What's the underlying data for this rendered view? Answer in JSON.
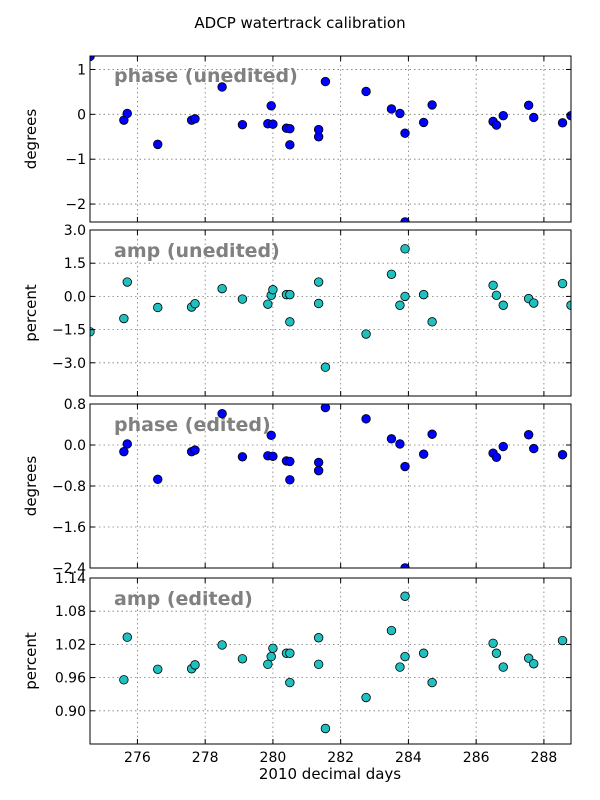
{
  "title": "ADCP watertrack calibration",
  "xlabel": "2010 decimal days",
  "colors": {
    "blue": "#0000ff",
    "cyan": "#20c0c0",
    "label_gray": "#808080"
  },
  "chart_data": [
    {
      "type": "scatter",
      "label": "phase (unedited)",
      "ylabel": "degrees",
      "xlim": [
        274.6,
        288.8
      ],
      "ylim": [
        -2.4,
        1.3
      ],
      "yticks": [
        "1",
        "0",
        "−1",
        "−2"
      ],
      "ytick_values": [
        1,
        0,
        -1,
        -2
      ],
      "xticks": [
        276,
        278,
        280,
        282,
        284,
        286,
        288
      ],
      "color": "#0000ff",
      "grid": true,
      "points": [
        [
          274.6,
          1.29
        ],
        [
          275.6,
          -0.13
        ],
        [
          275.7,
          0.02
        ],
        [
          276.6,
          -0.67
        ],
        [
          277.6,
          -0.13
        ],
        [
          277.7,
          -0.1
        ],
        [
          278.5,
          0.61
        ],
        [
          279.1,
          -0.23
        ],
        [
          279.85,
          -0.21
        ],
        [
          279.95,
          0.19
        ],
        [
          280.0,
          -0.22
        ],
        [
          280.4,
          -0.31
        ],
        [
          280.5,
          -0.32
        ],
        [
          280.5,
          -0.68
        ],
        [
          281.35,
          -0.5
        ],
        [
          281.35,
          -0.34
        ],
        [
          281.55,
          0.73
        ],
        [
          282.75,
          0.51
        ],
        [
          283.5,
          0.12
        ],
        [
          283.75,
          0.02
        ],
        [
          283.9,
          -0.42
        ],
        [
          283.9,
          -2.4
        ],
        [
          284.45,
          -0.18
        ],
        [
          284.7,
          0.21
        ],
        [
          286.5,
          -0.16
        ],
        [
          286.6,
          -0.24
        ],
        [
          286.8,
          -0.03
        ],
        [
          287.55,
          0.2
        ],
        [
          287.7,
          -0.07
        ],
        [
          288.55,
          -0.19
        ],
        [
          288.8,
          -0.03
        ]
      ]
    },
    {
      "type": "scatter",
      "label": "amp (unedited)",
      "ylabel": "percent",
      "xlim": [
        274.6,
        288.8
      ],
      "ylim": [
        -4.5,
        3.0
      ],
      "yticks": [
        "3.0",
        "1.5",
        "0.0",
        "−1.5",
        "−3.0"
      ],
      "ytick_values": [
        3.0,
        1.5,
        0.0,
        -1.5,
        -3.0
      ],
      "xticks": [
        276,
        278,
        280,
        282,
        284,
        286,
        288
      ],
      "color": "#20c0c0",
      "grid": true,
      "points": [
        [
          274.6,
          -1.6
        ],
        [
          275.6,
          -1.0
        ],
        [
          275.7,
          0.65
        ],
        [
          276.6,
          -0.5
        ],
        [
          277.6,
          -0.48
        ],
        [
          277.7,
          -0.33
        ],
        [
          278.5,
          0.35
        ],
        [
          279.1,
          -0.12
        ],
        [
          279.85,
          -0.35
        ],
        [
          279.95,
          0.05
        ],
        [
          280.0,
          0.3
        ],
        [
          280.4,
          0.08
        ],
        [
          280.5,
          0.08
        ],
        [
          280.5,
          -1.15
        ],
        [
          281.35,
          0.65
        ],
        [
          281.35,
          -0.32
        ],
        [
          281.55,
          -3.2
        ],
        [
          282.75,
          -1.7
        ],
        [
          283.5,
          1.0
        ],
        [
          283.75,
          -0.4
        ],
        [
          283.9,
          0.0
        ],
        [
          283.9,
          2.15
        ],
        [
          284.45,
          0.08
        ],
        [
          284.7,
          -1.15
        ],
        [
          286.5,
          0.5
        ],
        [
          286.6,
          0.05
        ],
        [
          286.8,
          -0.4
        ],
        [
          287.55,
          -0.1
        ],
        [
          287.7,
          -0.3
        ],
        [
          288.55,
          0.58
        ],
        [
          288.8,
          -0.4
        ]
      ]
    },
    {
      "type": "scatter",
      "label": "phase (edited)",
      "ylabel": "degrees",
      "xlim": [
        274.6,
        288.8
      ],
      "ylim": [
        -2.4,
        0.8
      ],
      "yticks": [
        "0.8",
        "0.0",
        "−0.8",
        "−1.6",
        "−2.4"
      ],
      "ytick_values": [
        0.8,
        0.0,
        -0.8,
        -1.6,
        -2.4
      ],
      "xticks": [
        276,
        278,
        280,
        282,
        284,
        286,
        288
      ],
      "color": "#0000ff",
      "grid": true,
      "points": [
        [
          275.6,
          -0.13
        ],
        [
          275.7,
          0.02
        ],
        [
          276.6,
          -0.67
        ],
        [
          277.6,
          -0.13
        ],
        [
          277.7,
          -0.1
        ],
        [
          278.5,
          0.61
        ],
        [
          279.1,
          -0.23
        ],
        [
          279.85,
          -0.21
        ],
        [
          279.95,
          0.19
        ],
        [
          280.0,
          -0.22
        ],
        [
          280.4,
          -0.31
        ],
        [
          280.5,
          -0.32
        ],
        [
          280.5,
          -0.68
        ],
        [
          281.35,
          -0.5
        ],
        [
          281.35,
          -0.34
        ],
        [
          281.55,
          0.73
        ],
        [
          282.75,
          0.51
        ],
        [
          283.5,
          0.12
        ],
        [
          283.75,
          0.02
        ],
        [
          283.9,
          -0.42
        ],
        [
          283.9,
          -2.4
        ],
        [
          284.45,
          -0.18
        ],
        [
          284.7,
          0.21
        ],
        [
          286.5,
          -0.16
        ],
        [
          286.6,
          -0.24
        ],
        [
          286.8,
          -0.03
        ],
        [
          287.55,
          0.2
        ],
        [
          287.7,
          -0.07
        ],
        [
          288.55,
          -0.19
        ]
      ]
    },
    {
      "type": "scatter",
      "label": "amp (edited)",
      "ylabel": "percent",
      "xlim": [
        274.6,
        288.8
      ],
      "ylim": [
        0.84,
        1.14
      ],
      "yticks": [
        "1.14",
        "1.08",
        "1.02",
        "0.96",
        "0.90"
      ],
      "ytick_values": [
        1.14,
        1.08,
        1.02,
        0.96,
        0.9
      ],
      "xticks": [
        276,
        278,
        280,
        282,
        284,
        286,
        288
      ],
      "color": "#20c0c0",
      "grid": true,
      "points": [
        [
          275.6,
          0.956
        ],
        [
          275.7,
          1.033
        ],
        [
          276.6,
          0.975
        ],
        [
          277.6,
          0.976
        ],
        [
          277.7,
          0.983
        ],
        [
          278.5,
          1.019
        ],
        [
          279.1,
          0.994
        ],
        [
          279.85,
          0.984
        ],
        [
          279.95,
          0.998
        ],
        [
          280.0,
          1.013
        ],
        [
          280.4,
          1.004
        ],
        [
          280.5,
          1.004
        ],
        [
          280.5,
          0.951
        ],
        [
          281.35,
          1.032
        ],
        [
          281.35,
          0.984
        ],
        [
          281.55,
          0.868
        ],
        [
          282.75,
          0.924
        ],
        [
          283.5,
          1.045
        ],
        [
          283.75,
          0.979
        ],
        [
          283.9,
          0.998
        ],
        [
          283.9,
          1.107
        ],
        [
          284.45,
          1.004
        ],
        [
          284.7,
          0.951
        ],
        [
          286.5,
          1.022
        ],
        [
          286.6,
          1.004
        ],
        [
          286.8,
          0.979
        ],
        [
          287.55,
          0.995
        ],
        [
          287.7,
          0.985
        ],
        [
          288.55,
          1.027
        ]
      ]
    }
  ]
}
